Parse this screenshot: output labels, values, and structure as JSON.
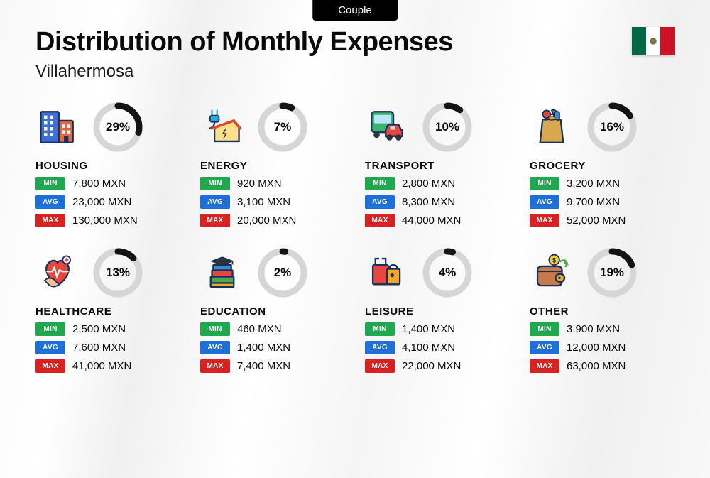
{
  "tab_label": "Couple",
  "title": "Distribution of Monthly Expenses",
  "city": "Villahermosa",
  "currency": "MXN",
  "badges": {
    "min": "MIN",
    "avg": "AVG",
    "max": "MAX"
  },
  "badge_colors": {
    "min": "#1fa84d",
    "avg": "#1e6fd9",
    "max": "#d92121"
  },
  "donut": {
    "track_color": "#d6d6d6",
    "fill_color": "#141414",
    "stroke_width": 9,
    "radius": 30
  },
  "flag_colors": {
    "green": "#006847",
    "white": "#ffffff",
    "red": "#ce1126"
  },
  "categories": [
    {
      "key": "housing",
      "label": "HOUSING",
      "percent": 29,
      "min": "7,800",
      "avg": "23,000",
      "max": "130,000"
    },
    {
      "key": "energy",
      "label": "ENERGY",
      "percent": 7,
      "min": "920",
      "avg": "3,100",
      "max": "20,000"
    },
    {
      "key": "transport",
      "label": "TRANSPORT",
      "percent": 10,
      "min": "2,800",
      "avg": "8,300",
      "max": "44,000"
    },
    {
      "key": "grocery",
      "label": "GROCERY",
      "percent": 16,
      "min": "3,200",
      "avg": "9,700",
      "max": "52,000"
    },
    {
      "key": "healthcare",
      "label": "HEALTHCARE",
      "percent": 13,
      "min": "2,500",
      "avg": "7,600",
      "max": "41,000"
    },
    {
      "key": "education",
      "label": "EDUCATION",
      "percent": 2,
      "min": "460",
      "avg": "1,400",
      "max": "7,400"
    },
    {
      "key": "leisure",
      "label": "LEISURE",
      "percent": 4,
      "min": "1,400",
      "avg": "4,100",
      "max": "22,000"
    },
    {
      "key": "other",
      "label": "OTHER",
      "percent": 19,
      "min": "3,900",
      "avg": "12,000",
      "max": "63,000"
    }
  ]
}
